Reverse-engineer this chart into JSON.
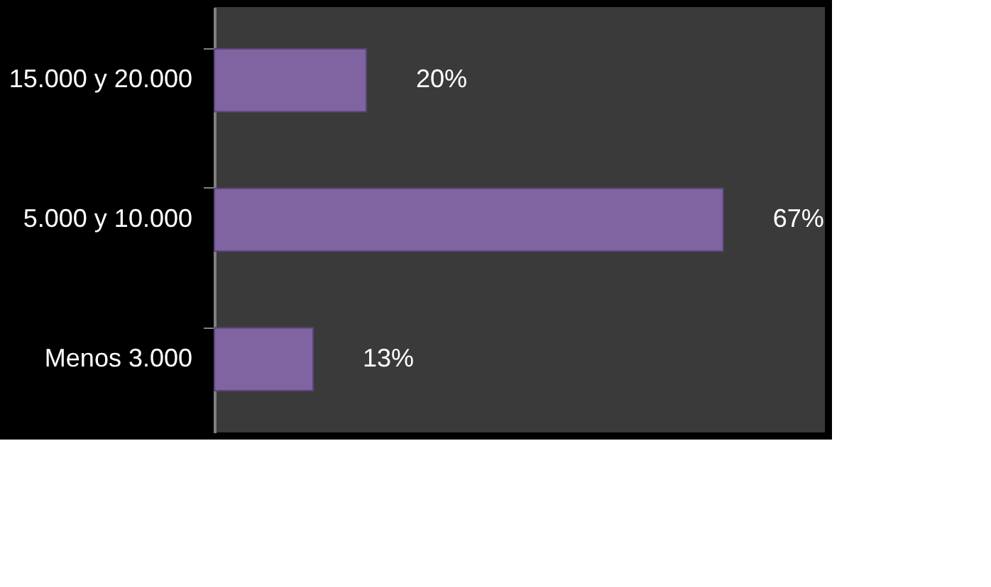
{
  "chart_data": {
    "type": "bar",
    "orientation": "horizontal",
    "categories": [
      "15.000 y 20.000",
      "5.000 y 10.000",
      "Menos 3.000"
    ],
    "values": [
      20,
      67,
      13
    ],
    "value_labels": [
      "20%",
      "67%",
      "13%"
    ],
    "color": "#8064a2"
  }
}
